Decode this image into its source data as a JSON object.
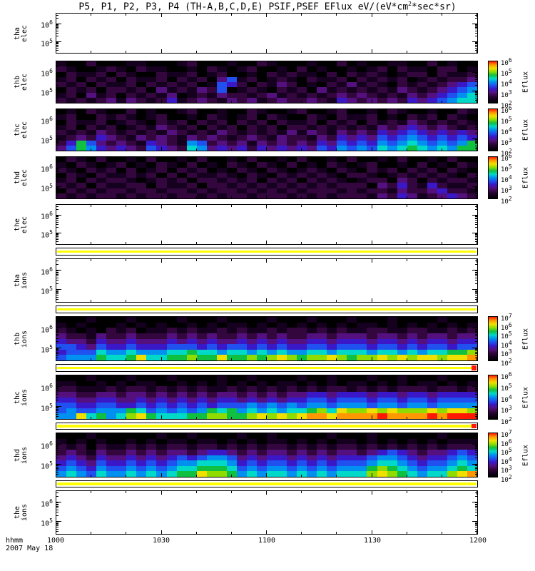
{
  "x_axis": {
    "label": "hhmm",
    "date": "2007 May 18",
    "ticks": [
      "1000",
      "1030",
      "1100",
      "1130",
      "1200"
    ]
  },
  "chart_data": {
    "type": "heatmap",
    "title": "P5, P1, P2, P3, P4 (TH-A,B,C,D,E) PSIF,PSEF EFlux eV/(eV*cm^2*sec*sr)",
    "xlabel": "hhmm",
    "x_range": [
      "1000",
      "1200"
    ],
    "legend_position": "right-colorbars",
    "grid": "off",
    "colormap_chars": "0123456789ABC",
    "colormap_colors": [
      "#000000",
      "#160020",
      "#33063e",
      "#551080",
      "#3a18c8",
      "#2050f0",
      "#0090f0",
      "#00d8c8",
      "#10c040",
      "#90dc00",
      "#f0e000",
      "#ff9800",
      "#ff1800"
    ],
    "strip_color": "#ffff00",
    "strip_red_color": "#ff1800",
    "panels": [
      {
        "id": "tha-elec",
        "kind": "empty",
        "label": [
          "tha",
          "elec"
        ],
        "y_ticks": [
          "10^6",
          "10^5"
        ]
      },
      {
        "id": "thb-elec",
        "kind": "spectrogram",
        "label": [
          "thb",
          "elec"
        ],
        "y_ticks": [
          "10^6",
          "10^5"
        ],
        "colorbar_label": "Eflux",
        "colorbar_ticks": [
          "10^6",
          "10^5",
          "10^4",
          "10^3",
          "10^2"
        ],
        "grid": [
          "100200011000120001002100010020100110020100",
          "210012102110010210120010201001012021102201",
          "021120210021120120010212110202121012202112",
          "120212021120212035120121021120212120121223",
          "212021120212120154202132010213121021212345",
          "021202212031213250121021203121212132123456",
          "120312021213012132212312121232321213234567",
          "212123132124123213231232232143232324345677"
        ]
      },
      {
        "id": "thc-elec",
        "kind": "spectrogram",
        "label": [
          "thc",
          "elec"
        ],
        "y_ticks": [
          "10^6",
          "10^5"
        ],
        "colorbar_label": "Eflux",
        "colorbar_ticks": [
          "10^6",
          "10^5",
          "10^4",
          "10^3",
          "10^2"
        ],
        "grid": [
          "010210020100120010021001200120010210010021",
          "120021210120010210120210021021120102120210",
          "021120121021202120212021120212021213212121",
          "120212012132120212021202212121213234323212",
          "212132121213212132121213132132324345434343",
          "123243213232132321232132213243435456545454",
          "248532321432165232313232324354546567656568",
          "358643432543276343424343435465657678767688"
        ]
      },
      {
        "id": "thd-elec",
        "kind": "spectrogram",
        "label": [
          "thd",
          "elec"
        ],
        "y_ticks": [
          "10^6",
          "10^5"
        ],
        "colorbar_label": "Eflux",
        "colorbar_ticks": [
          "10^6",
          "10^5",
          "10^4",
          "10^3",
          "10^2"
        ],
        "grid": [
          "021020010200102001020010200102001020010200",
          "102101201021020102102102010210120010201021",
          "210212020120212010210210121021021202120210",
          "021021121202021121021021212102210121212102",
          "120212210121202212120212021210122032021221",
          "212021122021120221212121212122203242142112",
          "021212212212212122121212122212122132234221",
          "212122121221221212212221212122213243123432"
        ]
      },
      {
        "id": "the-elec",
        "kind": "empty",
        "label": [
          "the",
          "elec"
        ],
        "y_ticks": [
          "10^6",
          "10^5"
        ]
      },
      {
        "id": "strip-1",
        "kind": "strip",
        "red_end": false
      },
      {
        "id": "tha-ions",
        "kind": "empty",
        "label": [
          "tha",
          "ions"
        ],
        "y_ticks": [
          "10^6",
          "10^5"
        ]
      },
      {
        "id": "strip-2",
        "kind": "strip",
        "red_end": false
      },
      {
        "id": "thb-ions",
        "kind": "spectrogram",
        "label": [
          "thb",
          "ions"
        ],
        "y_ticks": [
          "10^6",
          "10^5"
        ],
        "colorbar_label": "Eflux",
        "colorbar_ticks": [
          "10^7",
          "10^6",
          "10^5",
          "10^4",
          "10^3",
          "10^2"
        ],
        "grid": [
          "000100010000100010000100010001000100001000",
          "101000101010010101101010101010110101010101",
          "210102120112121121211212212121122112211212",
          "322132232223232322323232233233323323233233",
          "433243343334343433434343344344434434344344",
          "554354454445554545545454455455545545455455",
          "455576676667787767767676677677767767677889",
          "56668778A7788988A88989A9899A9899A9A9AA9AAB"
        ]
      },
      {
        "id": "strip-3",
        "kind": "strip",
        "red_end": true
      },
      {
        "id": "thc-ions",
        "kind": "spectrogram",
        "label": [
          "thc",
          "ions"
        ],
        "y_ticks": [
          "10^6",
          "10^5"
        ],
        "colorbar_label": "Eflux",
        "colorbar_ticks": [
          "10^6",
          "10^5",
          "10^4",
          "10^3",
          "10^2"
        ],
        "grid": [
          "000100010001000010010000100100010010001000",
          "110010101100101010101011010101101010110101",
          "221112122121212112121212121221212122212212",
          "332233233232323233232323344344434434434444",
          "443344334343434344343434455455545545545555",
          "554455445454545455565656566566656656656666",
          "5655666875656568786767677897A99A9A999A9AA9",
          "66A78679A87778899889A9A9ABBABBBBCBBBBCBCCC"
        ]
      },
      {
        "id": "strip-4",
        "kind": "strip",
        "red_end": true
      },
      {
        "id": "thd-ions",
        "kind": "spectrogram",
        "label": [
          "thd",
          "ions"
        ],
        "y_ticks": [
          "10^6",
          "10^5"
        ],
        "colorbar_label": "Eflux",
        "colorbar_ticks": [
          "10^7",
          "10^6",
          "10^5",
          "10^4",
          "10^3",
          "10^2"
        ],
        "grid": [
          "000100000010010000100100000100010000001000",
          "101010010101101101010110101011010101010111",
          "212021121212212212121221212122121212121222",
          "232132232323323443232332323233234543233454",
          "343243343434545665343443434344456654344565",
          "454354454545667776454554545455567765455676",
          "565465565656778887565665656566689876566787",
          "67657667676788A99867677676767779A9876779AB"
        ]
      },
      {
        "id": "strip-5",
        "kind": "strip",
        "red_end": false
      },
      {
        "id": "the-ions",
        "kind": "empty",
        "label": [
          "the",
          "ions"
        ],
        "y_ticks": [
          "10^6",
          "10^5"
        ]
      }
    ]
  }
}
